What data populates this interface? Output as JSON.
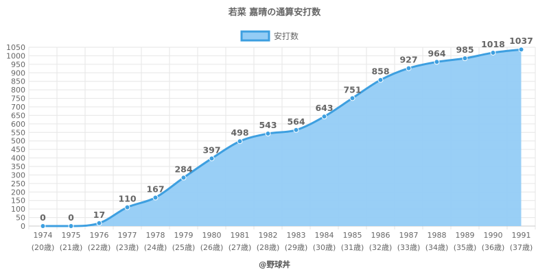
{
  "chart_data": {
    "type": "area",
    "title": "若菜 嘉晴の通算安打数",
    "legend": "安打数",
    "legend_position": "top-center",
    "categories": [
      "1974",
      "1975",
      "1976",
      "1977",
      "1978",
      "1979",
      "1980",
      "1981",
      "1982",
      "1983",
      "1984",
      "1985",
      "1986",
      "1987",
      "1988",
      "1989",
      "1990",
      "1991"
    ],
    "sub_labels": [
      "(20歳)",
      "(21歳)",
      "(22歳)",
      "(23歳)",
      "(24歳)",
      "(25歳)",
      "(26歳)",
      "(27歳)",
      "(28歳)",
      "(29歳)",
      "(30歳)",
      "(31歳)",
      "(32歳)",
      "(33歳)",
      "(34歳)",
      "(35歳)",
      "(36歳)",
      "(37歳)"
    ],
    "series": [
      {
        "name": "安打数",
        "values": [
          0,
          0,
          17,
          110,
          167,
          284,
          397,
          498,
          543,
          564,
          643,
          751,
          858,
          927,
          964,
          985,
          1018,
          1037
        ]
      }
    ],
    "ylim": [
      0,
      1050
    ],
    "ytick_step": 50,
    "grid": true,
    "colors": {
      "line": "#3d9fe0",
      "fill": "#93ccf5",
      "grid": "#e6e6e6",
      "axis": "#c8c8c8"
    }
  },
  "credit": "@野球丼"
}
